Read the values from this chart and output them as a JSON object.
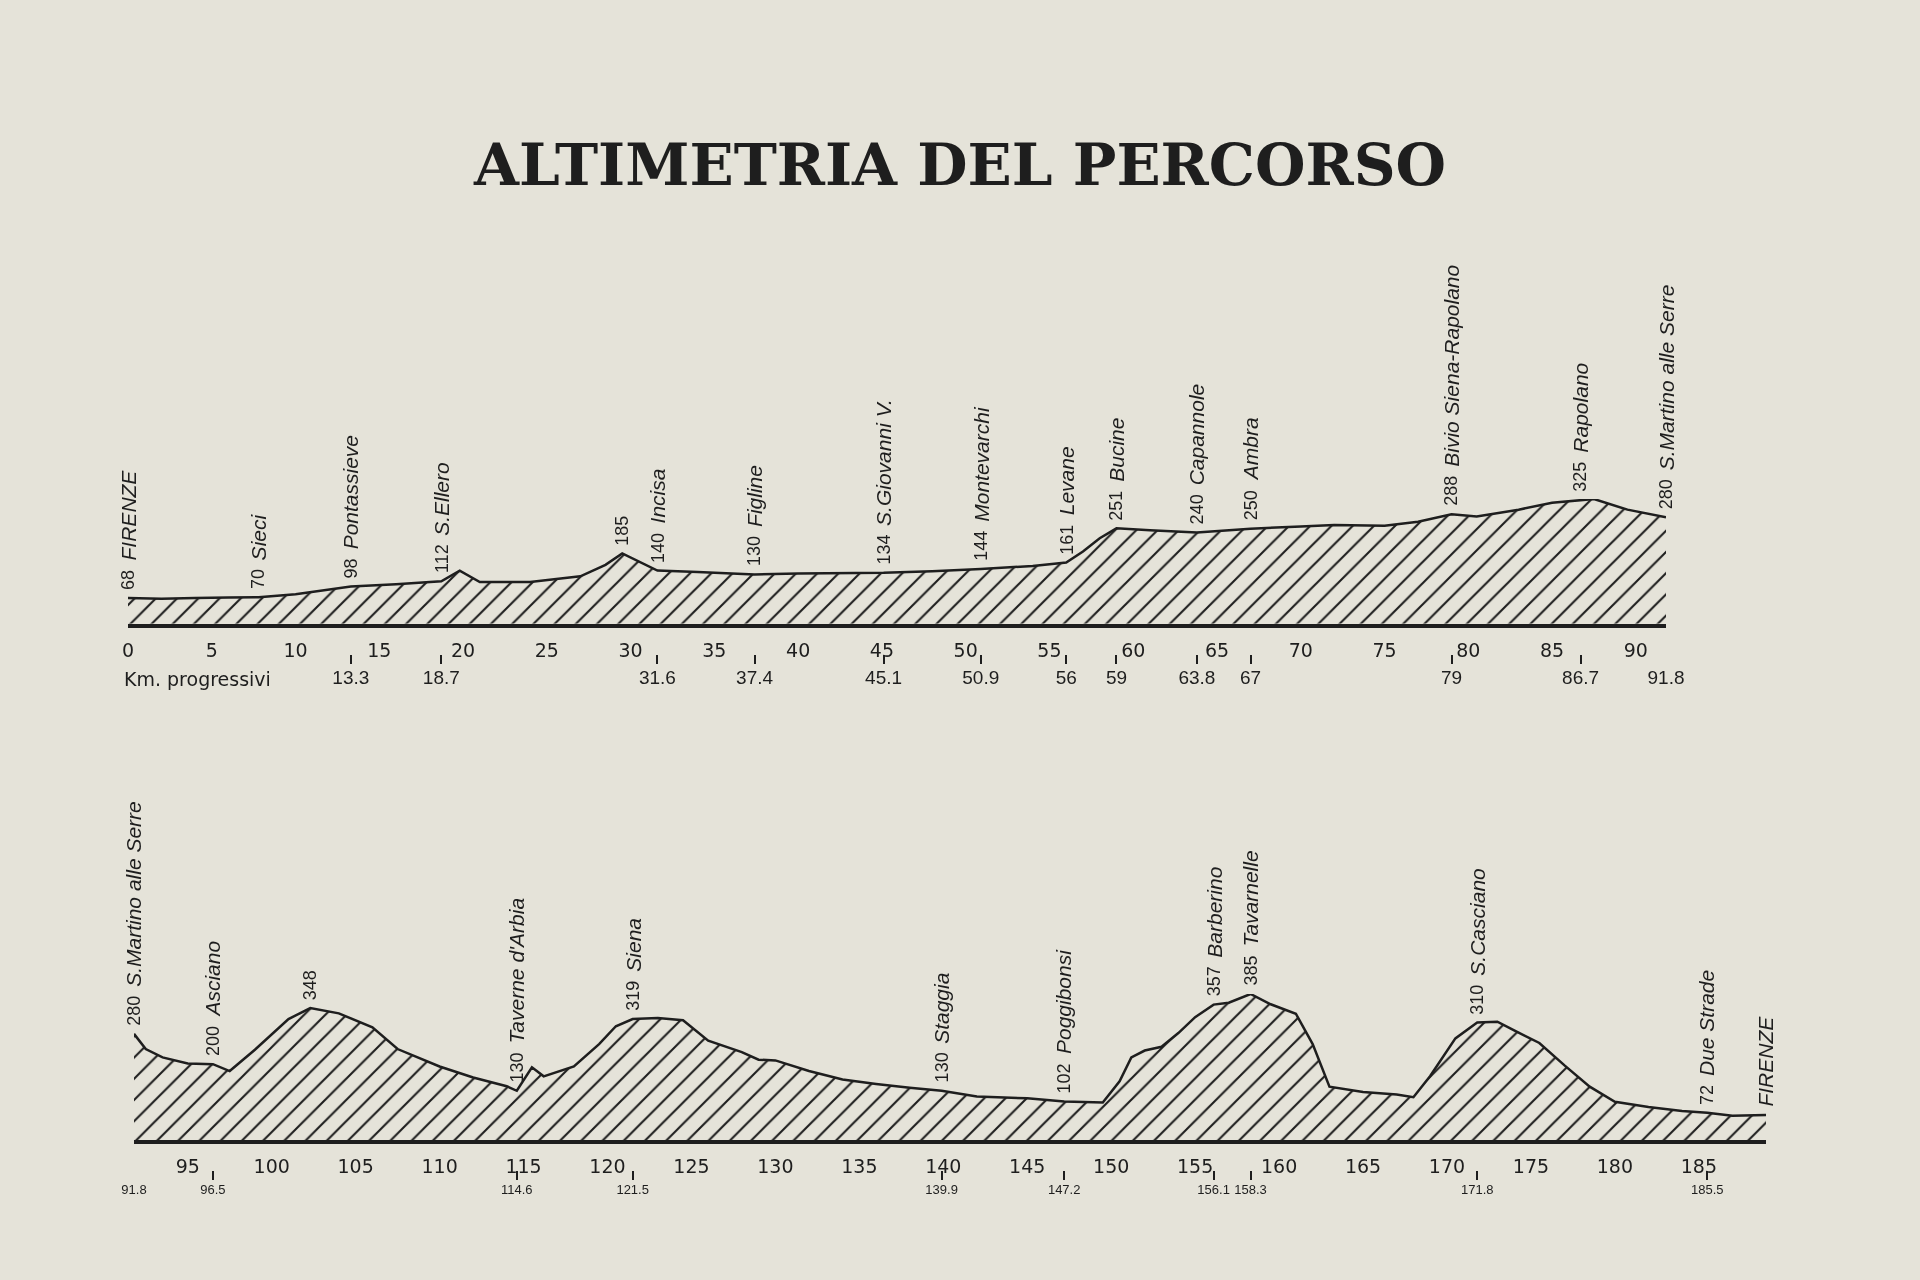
{
  "chart_data": [
    {
      "type": "area",
      "title": "ALTIMETRIA DEL PERCORSO",
      "color": "#1e1e1e",
      "x": [
        0,
        2,
        4,
        6,
        7.8,
        10,
        13.3,
        16,
        18.7,
        19.8,
        21,
        24,
        27,
        28.5,
        29.5,
        31.6,
        34,
        37.4,
        40,
        45.1,
        48,
        50.9,
        54,
        56,
        57,
        58,
        59,
        61,
        63.8,
        67,
        70,
        72,
        75,
        77,
        79,
        80.5,
        83,
        85,
        86.7,
        87.5,
        89.5,
        91.8
      ],
      "values": [
        68,
        66,
        68,
        69,
        70,
        78,
        98,
        104,
        112,
        140,
        110,
        110,
        125,
        155,
        185,
        140,
        136,
        130,
        132,
        134,
        138,
        144,
        152,
        161,
        190,
        225,
        251,
        246,
        240,
        250,
        256,
        260,
        258,
        268,
        288,
        282,
        300,
        318,
        325,
        328,
        300,
        280
      ],
      "value_labels": [
        "68",
        null,
        null,
        null,
        "70",
        null,
        "98",
        null,
        "112",
        null,
        null,
        null,
        null,
        null,
        "185",
        "140",
        null,
        "130",
        null,
        "134",
        null,
        "144",
        null,
        "161",
        null,
        null,
        "251",
        null,
        "240",
        "250",
        null,
        null,
        null,
        null,
        "288",
        null,
        null,
        null,
        "325",
        null,
        null,
        "280"
      ],
      "xlim": [
        0,
        91.8
      ],
      "xticks": [
        0,
        5,
        10,
        15,
        20,
        25,
        30,
        35,
        40,
        45,
        50,
        55,
        60,
        65,
        70,
        75,
        80,
        85,
        90
      ],
      "x2lim": [
        0,
        91.8
      ],
      "x2ticks": [
        13.3,
        18.7,
        31.6,
        37.4,
        45.1,
        50.9,
        56,
        59,
        63.8,
        67,
        79,
        86.7,
        91.8
      ],
      "x2label": "Km. progressivi",
      "annotations": [
        {
          "text": "FIRENZE",
          "x": 0,
          "y": 68
        },
        {
          "text": "Sieci",
          "x": 7.8,
          "y": 70
        },
        {
          "text": "Pontassieve",
          "x": 13.3,
          "y": 98
        },
        {
          "text": "S.Ellero",
          "x": 18.7,
          "y": 112
        },
        {
          "text": "Incisa",
          "x": 31.6,
          "y": 140
        },
        {
          "text": "Figline",
          "x": 37.4,
          "y": 130
        },
        {
          "text": "S.Giovanni V.",
          "x": 45.1,
          "y": 134
        },
        {
          "text": "Montevarchi",
          "x": 50.9,
          "y": 144
        },
        {
          "text": "Levane",
          "x": 56,
          "y": 161
        },
        {
          "text": "Bucine",
          "x": 59,
          "y": 251
        },
        {
          "text": "Capannole",
          "x": 63.8,
          "y": 240
        },
        {
          "text": "Ambra",
          "x": 67,
          "y": 250
        },
        {
          "text": "Bivio Siena-Rapolano",
          "x": 79,
          "y": 288
        },
        {
          "text": "Rapolano",
          "x": 86.7,
          "y": 325
        },
        {
          "text": "S.Martino alle Serre",
          "x": 91.8,
          "y": 280
        }
      ]
    },
    {
      "type": "area",
      "color": "#1e1e1e",
      "x": [
        91.8,
        92.5,
        93.5,
        95,
        96.5,
        97.5,
        99,
        101,
        102.3,
        104,
        106,
        107.5,
        110,
        112,
        114,
        114.6,
        115.5,
        116.2,
        118,
        119.5,
        120.5,
        121.5,
        123,
        124.5,
        126,
        128,
        129,
        130,
        132,
        134,
        136,
        138,
        139.9,
        142,
        145,
        147.2,
        149.5,
        150.5,
        151.2,
        152,
        153,
        154,
        155,
        156.1,
        157,
        158.3,
        159.5,
        161,
        162,
        163,
        165,
        167,
        168,
        169,
        170.5,
        171.8,
        173,
        174,
        175.5,
        177,
        178.5,
        180,
        182,
        184,
        185.5,
        187,
        189
      ],
      "values": [
        280,
        240,
        218,
        202,
        200,
        182,
        238,
        319,
        348,
        334,
        297,
        240,
        194,
        165,
        142,
        130,
        192,
        168,
        194,
        253,
        300,
        319,
        322,
        316,
        262,
        232,
        212,
        210,
        182,
        160,
        148,
        138,
        130,
        115,
        110,
        102,
        99,
        155,
        218,
        236,
        246,
        282,
        324,
        357,
        362,
        385,
        358,
        333,
        253,
        141,
        127,
        120,
        113,
        169,
        268,
        310,
        312,
        289,
        256,
        197,
        141,
        101,
        87,
        77,
        72,
        64,
        66
      ],
      "value_labels": [
        "280",
        null,
        null,
        null,
        "200",
        null,
        null,
        null,
        "348",
        null,
        null,
        null,
        null,
        null,
        null,
        "130",
        null,
        null,
        null,
        null,
        null,
        "319",
        null,
        null,
        null,
        null,
        null,
        null,
        null,
        null,
        null,
        null,
        "130",
        null,
        null,
        "102",
        null,
        null,
        null,
        null,
        null,
        null,
        null,
        "357",
        null,
        "385",
        null,
        null,
        null,
        null,
        null,
        null,
        null,
        null,
        null,
        "310",
        null,
        null,
        null,
        null,
        null,
        null,
        null,
        null,
        "72",
        null,
        null
      ],
      "xlim": [
        91.8,
        189
      ],
      "xticks": [
        95,
        100,
        105,
        110,
        115,
        120,
        125,
        130,
        135,
        140,
        145,
        150,
        155,
        160,
        165,
        170,
        175,
        180,
        185
      ],
      "x2lim": [
        91.8,
        189
      ],
      "x2ticks": [
        91.8,
        96.5,
        114.6,
        121.5,
        139.9,
        147.2,
        156.1,
        158.3,
        171.8,
        185.5
      ],
      "annotations": [
        {
          "text": "S.Martino alle Serre",
          "x": 91.8,
          "y": 280
        },
        {
          "text": "Asciano",
          "x": 96.5,
          "y": 200
        },
        {
          "text": "Taverne d'Arbia",
          "x": 114.6,
          "y": 130
        },
        {
          "text": "Siena",
          "x": 121.5,
          "y": 319
        },
        {
          "text": "Staggia",
          "x": 139.9,
          "y": 130
        },
        {
          "text": "Poggibonsi",
          "x": 147.2,
          "y": 102
        },
        {
          "text": "Barberino",
          "x": 156.1,
          "y": 357
        },
        {
          "text": "Tavarnelle",
          "x": 158.3,
          "y": 385
        },
        {
          "text": "S.Casciano",
          "x": 171.8,
          "y": 310
        },
        {
          "text": "Due Strade",
          "x": 185.5,
          "y": 72
        },
        {
          "text": "FIRENZE",
          "x": 189,
          "y": 66
        }
      ]
    }
  ]
}
